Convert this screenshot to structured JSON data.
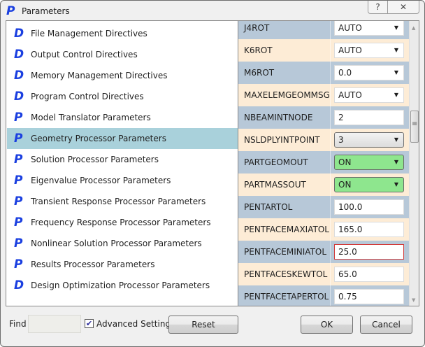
{
  "window": {
    "title": "Parameters",
    "help_label": "?",
    "close_label": "✕"
  },
  "categories": [
    {
      "icon": "D",
      "label": "File Management Directives"
    },
    {
      "icon": "D",
      "label": "Output Control Directives"
    },
    {
      "icon": "D",
      "label": "Memory Management Directives"
    },
    {
      "icon": "D",
      "label": "Program Control Directives"
    },
    {
      "icon": "P",
      "label": "Model Translator Parameters"
    },
    {
      "icon": "P",
      "label": "Geometry Processor Parameters",
      "selected": true
    },
    {
      "icon": "P",
      "label": "Solution Processor Parameters"
    },
    {
      "icon": "P",
      "label": "Eigenvalue Processor Parameters"
    },
    {
      "icon": "P",
      "label": "Transient Response Processor Parameters"
    },
    {
      "icon": "P",
      "label": "Frequency Response Processor Parameters"
    },
    {
      "icon": "P",
      "label": "Nonlinear Solution Processor Parameters"
    },
    {
      "icon": "P",
      "label": "Results Processor Parameters"
    },
    {
      "icon": "D",
      "label": "Design Optimization Processor Parameters"
    }
  ],
  "parameters": [
    {
      "name": "J4ROT",
      "value": "AUTO",
      "type": "dropdown"
    },
    {
      "name": "K6ROT",
      "value": "AUTO",
      "type": "dropdown"
    },
    {
      "name": "M6ROT",
      "value": "0.0",
      "type": "dropdown"
    },
    {
      "name": "MAXELEMGEOMMSG",
      "value": "AUTO",
      "type": "dropdown"
    },
    {
      "name": "NBEAMINTNODE",
      "value": "2",
      "type": "text"
    },
    {
      "name": "NSLDPLYINTPOINT",
      "value": "3",
      "type": "dropdown-focused"
    },
    {
      "name": "PARTGEOMOUT",
      "value": "ON",
      "type": "dropdown-on"
    },
    {
      "name": "PARTMASSOUT",
      "value": "ON",
      "type": "dropdown-on"
    },
    {
      "name": "PENTARTOL",
      "value": "100.0",
      "type": "text"
    },
    {
      "name": "PENTFACEMAXIATOL",
      "value": "165.0",
      "type": "text"
    },
    {
      "name": "PENTFACEMINIATOL",
      "value": "25.0",
      "type": "text-error"
    },
    {
      "name": "PENTFACESKEWTOL",
      "value": "65.0",
      "type": "text"
    },
    {
      "name": "PENTFACETAPERTOL",
      "value": "0.75",
      "type": "text"
    }
  ],
  "colors": {
    "row_blue": "#b7c8d8",
    "row_cream": "#fdecd6",
    "selected": "#a9d1db",
    "on_green": "#8ee68e",
    "error_border": "#d13a3a",
    "icon_blue": "#1a3fe0"
  },
  "footer": {
    "find_label": "Find",
    "find_value": "",
    "advanced_label": "Advanced Settings",
    "advanced_checked": true,
    "reset_label": "Reset",
    "ok_label": "OK",
    "cancel_label": "Cancel"
  }
}
